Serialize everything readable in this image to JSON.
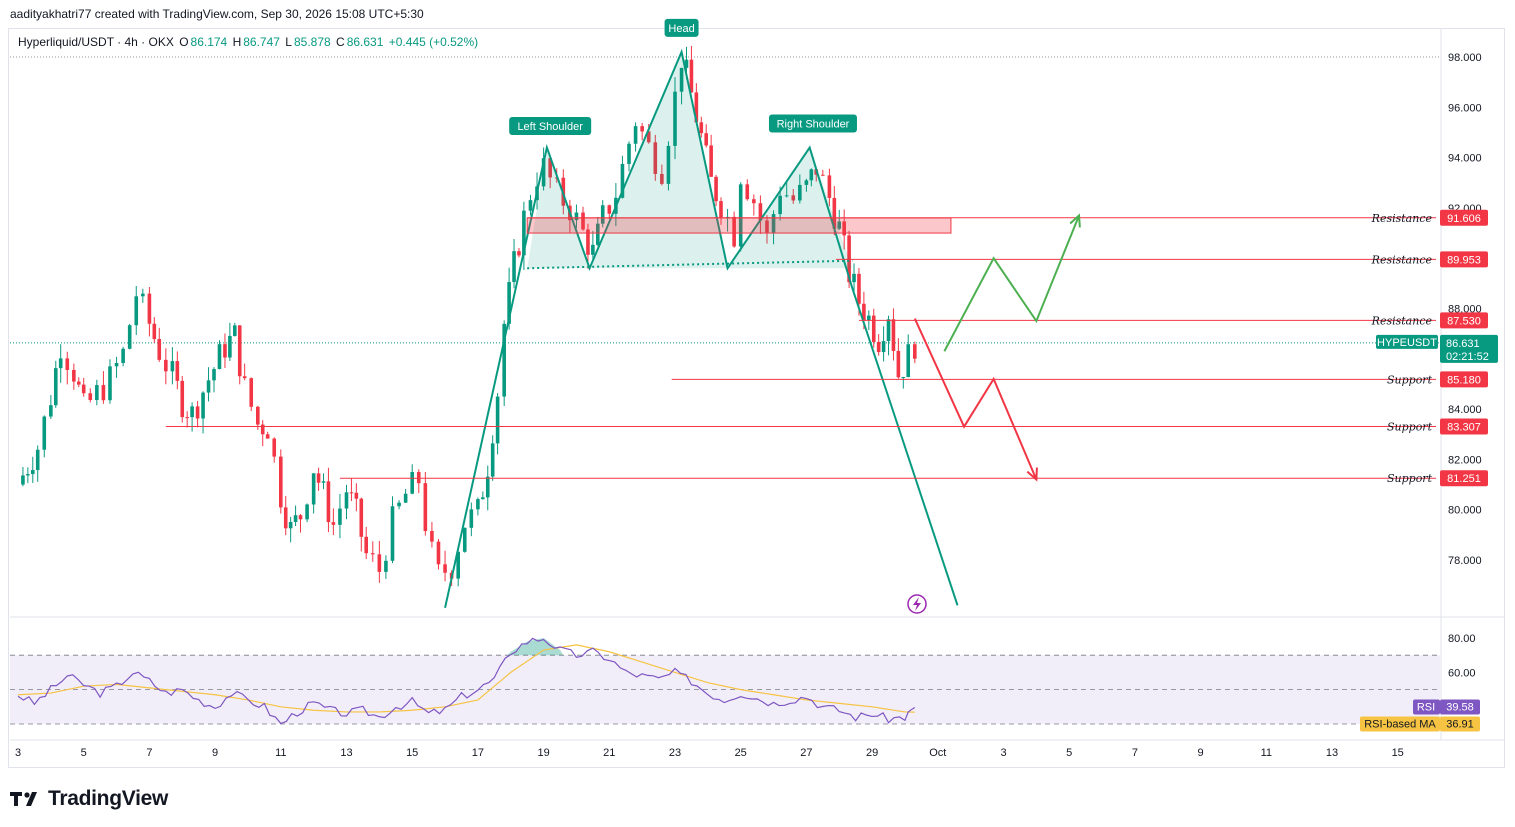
{
  "caption": "aadityakhatri77 created with TradingView.com, Sep 30, 2026 15:08 UTC+5:30",
  "legend": {
    "symbol": "Hyperliquid/USDT · 4h · OKX",
    "open_label": "O",
    "open": "86.174",
    "high_label": "H",
    "high": "86.747",
    "low_label": "L",
    "low": "85.878",
    "close_label": "C",
    "close": "86.631",
    "change": "+0.445 (+0.52%)"
  },
  "brand": "TradingView",
  "chart_data": [
    {
      "type": "candlestick",
      "interval": "4h",
      "price_axis": {
        "ticks": [
          "98.000",
          "96.000",
          "94.000",
          "92.000",
          "88.000",
          "84.000",
          "82.000",
          "80.000",
          "78.000"
        ],
        "ylim": [
          76.2,
          98.8
        ]
      },
      "time_axis": {
        "ticks": [
          "3",
          "5",
          "7",
          "9",
          "11",
          "13",
          "15",
          "17",
          "19",
          "21",
          "23",
          "25",
          "27",
          "29",
          "Oct",
          "3",
          "5",
          "7",
          "9",
          "11",
          "13",
          "15"
        ]
      },
      "close_path": [
        [
          3,
          81
        ],
        [
          3.6,
          82.5
        ],
        [
          4,
          84.5
        ],
        [
          4.3,
          86.6
        ],
        [
          4.7,
          85.5
        ],
        [
          5,
          84
        ],
        [
          5.4,
          84.6
        ],
        [
          5.8,
          85.2
        ],
        [
          6.2,
          86.2
        ],
        [
          6.6,
          88.6
        ],
        [
          7,
          87.4
        ],
        [
          7.3,
          86.3
        ],
        [
          7.7,
          85.3
        ],
        [
          8,
          84.3
        ],
        [
          8.3,
          83.8
        ],
        [
          8.8,
          85.2
        ],
        [
          9.3,
          86.5
        ],
        [
          9.6,
          86.9
        ],
        [
          9.9,
          84.8
        ],
        [
          10.3,
          83.4
        ],
        [
          10.6,
          83.3
        ],
        [
          11,
          80.6
        ],
        [
          11.3,
          79.2
        ],
        [
          11.6,
          79.8
        ],
        [
          12,
          81.7
        ],
        [
          12.3,
          80.6
        ],
        [
          12.6,
          79.4
        ],
        [
          13,
          80.8
        ],
        [
          13.3,
          79.8
        ],
        [
          13.6,
          78.2
        ],
        [
          14,
          77.6
        ],
        [
          14.4,
          79.5
        ],
        [
          14.8,
          80.6
        ],
        [
          15.2,
          81.2
        ],
        [
          15.4,
          79.5
        ],
        [
          15.6,
          78.2
        ],
        [
          15.8,
          77.4
        ],
        [
          16.2,
          77.8
        ],
        [
          16.6,
          79.5
        ],
        [
          17,
          79.9
        ],
        [
          17.3,
          81.8
        ],
        [
          17.6,
          84.7
        ],
        [
          17.8,
          87.4
        ],
        [
          18.1,
          89.7
        ],
        [
          18.4,
          91.6
        ],
        [
          18.6,
          92.6
        ],
        [
          18.8,
          93.3
        ],
        [
          19,
          93.6
        ],
        [
          19.4,
          92.6
        ],
        [
          19.8,
          92.0
        ],
        [
          20.2,
          91.0
        ],
        [
          20.5,
          90.2
        ],
        [
          20.8,
          91.6
        ],
        [
          21.2,
          92.6
        ],
        [
          21.6,
          94.6
        ],
        [
          21.8,
          95.5
        ],
        [
          22.2,
          94.4
        ],
        [
          22.6,
          93.6
        ],
        [
          23,
          96.4
        ],
        [
          23.2,
          98.0
        ],
        [
          23.5,
          96.5
        ],
        [
          23.8,
          94.8
        ],
        [
          24.1,
          93.0
        ],
        [
          24.4,
          92.2
        ],
        [
          24.8,
          91.0
        ],
        [
          25,
          93.4
        ],
        [
          25.4,
          92.3
        ],
        [
          25.8,
          90.8
        ],
        [
          26.2,
          92.8
        ],
        [
          26.6,
          92.3
        ],
        [
          27,
          92.8
        ],
        [
          27.3,
          93.6
        ],
        [
          27.7,
          92.4
        ],
        [
          28,
          91.2
        ],
        [
          28.3,
          89.4
        ],
        [
          28.6,
          88.3
        ],
        [
          28.9,
          87.6
        ],
        [
          29.2,
          86.8
        ],
        [
          29.5,
          87.9
        ],
        [
          29.8,
          85.4
        ],
        [
          30.1,
          86.1
        ],
        [
          30.3,
          86.63
        ]
      ],
      "levels": [
        {
          "type": "Resistance",
          "value": 91.606
        },
        {
          "type": "Resistance",
          "value": 89.953
        },
        {
          "type": "Resistance",
          "value": 87.53
        },
        {
          "type": "Support",
          "value": 85.18
        },
        {
          "type": "Support",
          "value": 83.307
        },
        {
          "type": "Support",
          "value": 81.251
        }
      ],
      "current_price": {
        "symbol": "HYPEUSDT",
        "value": "86.631",
        "countdown": "02:21:52"
      },
      "pattern": {
        "labels": [
          "Left Shoulder",
          "Head",
          "Right Shoulder"
        ],
        "points": [
          [
            16,
            76.1
          ],
          [
            19.1,
            94.4
          ],
          [
            20.4,
            89.6
          ],
          [
            23.2,
            98.2
          ],
          [
            24.6,
            89.6
          ],
          [
            27.1,
            94.4
          ],
          [
            28.4,
            88.8
          ],
          [
            31.6,
            76.2
          ]
        ]
      },
      "scenarios": {
        "bullish": [
          [
            31.2,
            86.3
          ],
          [
            32.7,
            90
          ],
          [
            34,
            87.5
          ],
          [
            35.3,
            91.7
          ]
        ],
        "bearish": [
          [
            30.3,
            87.6
          ],
          [
            31.8,
            83.3
          ],
          [
            32.7,
            85.2
          ],
          [
            34,
            81.2
          ]
        ]
      },
      "colors": {
        "up": "#089981",
        "down": "#f23645",
        "pattern": "#089981",
        "level": "#f23645",
        "bull": "#4caf50",
        "bear": "#f23645"
      }
    },
    {
      "type": "line",
      "name": "RSI",
      "axis_ticks": [
        "80.00",
        "60.00"
      ],
      "ylim": [
        10,
        90
      ],
      "series": [
        {
          "name": "RSI",
          "value": "39.58",
          "color": "#7e57c2"
        },
        {
          "name": "RSI-based MA",
          "value": "36.91",
          "color": "#f6c343"
        }
      ],
      "rsi_path": [
        [
          3,
          47
        ],
        [
          3.5,
          42
        ],
        [
          4,
          50
        ],
        [
          4.5,
          58
        ],
        [
          5,
          53
        ],
        [
          5.5,
          48
        ],
        [
          6,
          52
        ],
        [
          6.5,
          60
        ],
        [
          7,
          55
        ],
        [
          7.5,
          48
        ],
        [
          8,
          50
        ],
        [
          8.5,
          44
        ],
        [
          9,
          40
        ],
        [
          9.5,
          48
        ],
        [
          10,
          44
        ],
        [
          10.5,
          40
        ],
        [
          11,
          30
        ],
        [
          11.5,
          37
        ],
        [
          12,
          42
        ],
        [
          12.5,
          38
        ],
        [
          13,
          36
        ],
        [
          13.5,
          38
        ],
        [
          14,
          34
        ],
        [
          14.5,
          40
        ],
        [
          15,
          43
        ],
        [
          15.5,
          36
        ],
        [
          16,
          38
        ],
        [
          16.5,
          46
        ],
        [
          17,
          50
        ],
        [
          17.5,
          56
        ],
        [
          18,
          72
        ],
        [
          18.5,
          78
        ],
        [
          19,
          80
        ],
        [
          19.5,
          73
        ],
        [
          20,
          70
        ],
        [
          20.5,
          72
        ],
        [
          21,
          68
        ],
        [
          21.5,
          60
        ],
        [
          22,
          58
        ],
        [
          22.5,
          56
        ],
        [
          23,
          60
        ],
        [
          23.5,
          55
        ],
        [
          24,
          48
        ],
        [
          24.5,
          44
        ],
        [
          25,
          48
        ],
        [
          25.5,
          45
        ],
        [
          26,
          42
        ],
        [
          26.5,
          44
        ],
        [
          27,
          46
        ],
        [
          27.5,
          40
        ],
        [
          28,
          38
        ],
        [
          28.5,
          34
        ],
        [
          29,
          36
        ],
        [
          29.5,
          33
        ],
        [
          30,
          34
        ],
        [
          30.3,
          39.6
        ]
      ],
      "ma_path": [
        [
          3,
          47
        ],
        [
          4,
          48
        ],
        [
          5,
          52
        ],
        [
          6,
          53
        ],
        [
          7,
          51
        ],
        [
          8,
          49
        ],
        [
          9,
          47
        ],
        [
          10,
          44
        ],
        [
          11,
          40
        ],
        [
          12,
          38
        ],
        [
          13,
          37
        ],
        [
          14,
          37
        ],
        [
          15,
          38
        ],
        [
          16,
          40
        ],
        [
          17,
          44
        ],
        [
          18,
          60
        ],
        [
          19,
          73
        ],
        [
          20,
          76
        ],
        [
          21,
          72
        ],
        [
          22,
          66
        ],
        [
          23,
          60
        ],
        [
          24,
          54
        ],
        [
          25,
          50
        ],
        [
          26,
          47
        ],
        [
          27,
          44
        ],
        [
          28,
          42
        ],
        [
          29,
          40
        ],
        [
          30,
          37
        ],
        [
          30.3,
          36.9
        ]
      ]
    }
  ],
  "rsi_legend": {
    "rsi_label": "RSI",
    "rsi_value": "39.58",
    "ma_label": "RSI-based MA",
    "ma_value": "36.91"
  }
}
